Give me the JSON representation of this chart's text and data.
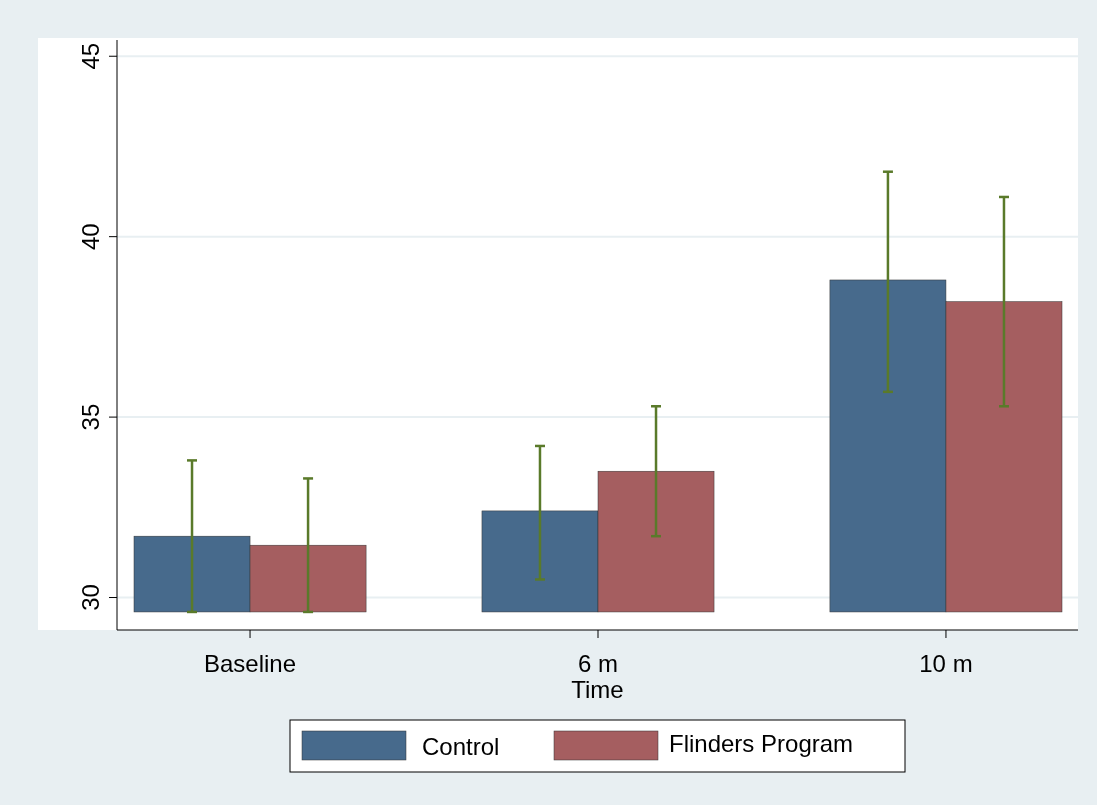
{
  "chart_data": {
    "type": "bar",
    "xlabel": "Time",
    "categories": [
      "Baseline",
      "6 m",
      "10 m"
    ],
    "series": [
      {
        "name": "Control",
        "color": "#476a8c",
        "base": [
          29.6,
          29.6,
          29.6
        ],
        "values": [
          2.1,
          2.8,
          9.2
        ],
        "errors": [
          [
            29.6,
            33.8
          ],
          [
            30.5,
            34.2
          ],
          [
            35.7,
            41.8
          ]
        ]
      },
      {
        "name": "Flinders Program",
        "color": "#a55e60",
        "base": [
          29.6,
          29.6,
          29.6
        ],
        "values": [
          1.85,
          3.9,
          8.6
        ],
        "errors": [
          [
            29.6,
            33.3
          ],
          [
            31.7,
            35.3
          ],
          [
            35.3,
            41.1
          ]
        ]
      }
    ],
    "ylim": [
      29.1,
      45.45
    ],
    "yticks": [
      30,
      35,
      40,
      45
    ],
    "grid": "y",
    "legend": "bottom"
  }
}
